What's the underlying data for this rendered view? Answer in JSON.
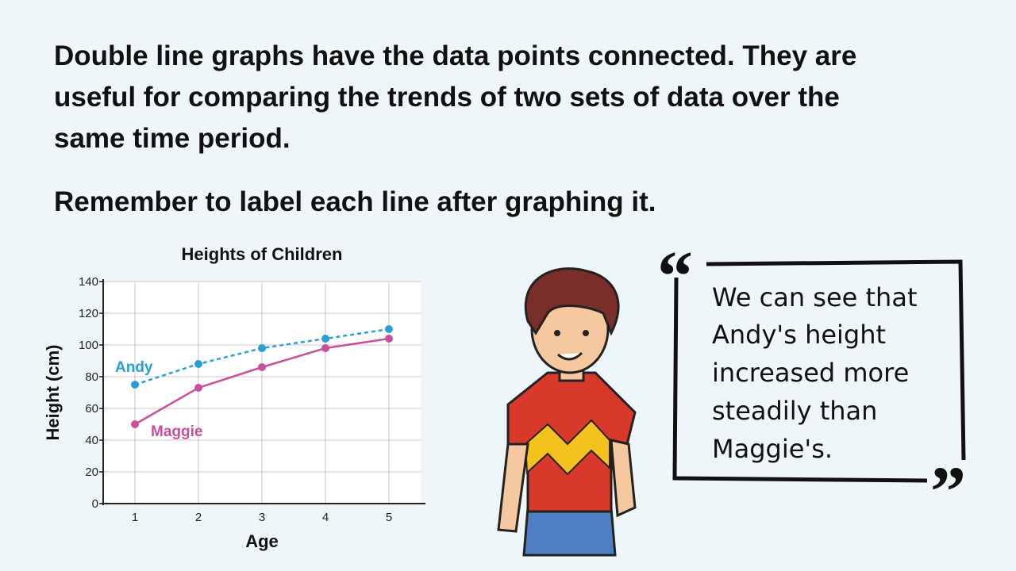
{
  "slide": {
    "paragraphs": [
      "Double line graphs have the data points connected.  They are",
      "useful for comparing the trends of two sets of data over the",
      "same time period.",
      "Remember to label each line after graphing it."
    ]
  },
  "chart_data": {
    "type": "line",
    "title": "Heights of Children",
    "x_label": "Age",
    "y_label": "Height (cm)",
    "x": [
      1,
      2,
      3,
      4,
      5
    ],
    "series": [
      {
        "name": "Andy",
        "color": "#2a9fd6",
        "dashed": true,
        "values": [
          75,
          88,
          98,
          104,
          110
        ]
      },
      {
        "name": "Maggie",
        "color": "#c94f9b",
        "dashed": false,
        "values": [
          50,
          73,
          86,
          98,
          104
        ]
      }
    ],
    "xlim": [
      0.5,
      5.5
    ],
    "xticks": [
      1,
      2,
      3,
      4,
      5
    ],
    "ylim": [
      0,
      140
    ],
    "yticks": [
      0,
      20,
      40,
      60,
      80,
      100,
      120,
      140
    ],
    "grid": true
  },
  "quote": {
    "lines": [
      "We can see that",
      "Andy's height",
      "increased more",
      "steadily than",
      "Maggie's."
    ]
  }
}
